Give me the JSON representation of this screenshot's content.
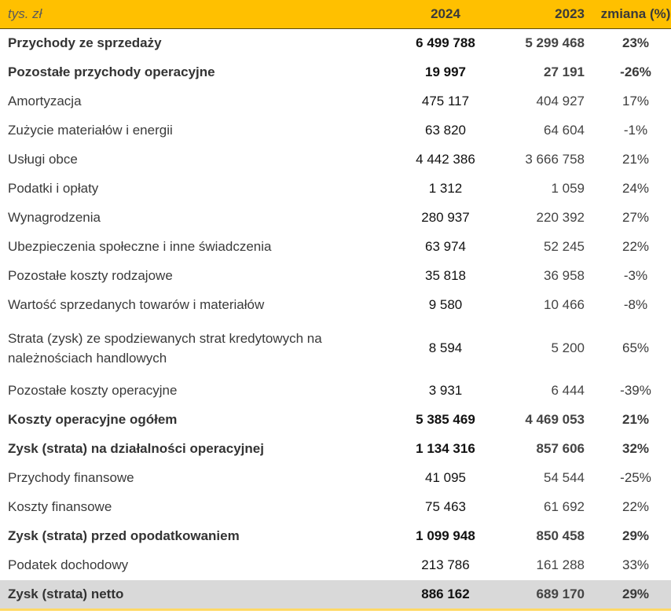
{
  "header": {
    "unit": "tys. zł",
    "col_2024": "2024",
    "col_2023": "2023",
    "col_change": "zmiana (%)"
  },
  "colors": {
    "header_bg": "#FFC000",
    "total_row_bg": "#D9D9D9"
  },
  "rows": [
    {
      "label": "Przychody ze sprzedaży",
      "v2024": "6 499 788",
      "v2023": "5 299 468",
      "change": "23%",
      "bold": true
    },
    {
      "label": "Pozostałe przychody operacyjne",
      "v2024": "19 997",
      "v2023": "27 191",
      "change": "-26%",
      "bold": true
    },
    {
      "label": "Amortyzacja",
      "v2024": "475 117",
      "v2023": "404 927",
      "change": "17%"
    },
    {
      "label": "Zużycie materiałów i energii",
      "v2024": "63 820",
      "v2023": "64 604",
      "change": "-1%"
    },
    {
      "label": "Usługi obce",
      "v2024": "4 442 386",
      "v2023": "3 666 758",
      "change": "21%"
    },
    {
      "label": "Podatki i opłaty",
      "v2024": "1 312",
      "v2023": "1 059",
      "change": "24%"
    },
    {
      "label": "Wynagrodzenia",
      "v2024": "280 937",
      "v2023": "220 392",
      "change": "27%"
    },
    {
      "label": "Ubezpieczenia społeczne i inne świadczenia",
      "v2024": "63 974",
      "v2023": "52 245",
      "change": "22%"
    },
    {
      "label": "Pozostałe koszty rodzajowe",
      "v2024": "35 818",
      "v2023": "36 958",
      "change": "-3%"
    },
    {
      "label": "Wartość sprzedanych towarów i materiałów",
      "v2024": "9 580",
      "v2023": "10 466",
      "change": "-8%"
    },
    {
      "label": "Strata (zysk) ze spodziewanych strat kredytowych na należnościach handlowych",
      "v2024": "8 594",
      "v2023": "5 200",
      "change": "65%",
      "tall": true
    },
    {
      "label": "Pozostałe koszty operacyjne",
      "v2024": "3 931",
      "v2023": "6 444",
      "change": "-39%"
    },
    {
      "label": "Koszty operacyjne ogółem",
      "v2024": "5 385 469",
      "v2023": "4 469 053",
      "change": "21%",
      "bold": true
    },
    {
      "label": "Zysk (strata) na działalności operacyjnej",
      "v2024": "1 134 316",
      "v2023": "857 606",
      "change": "32%",
      "bold": true
    },
    {
      "label": "Przychody finansowe",
      "v2024": "41 095",
      "v2023": "54 544",
      "change": "-25%"
    },
    {
      "label": "Koszty finansowe",
      "v2024": "75 463",
      "v2023": "61 692",
      "change": "22%"
    },
    {
      "label": "Zysk (strata) przed opodatkowaniem",
      "v2024": "1 099 948",
      "v2023": "850 458",
      "change": "29%",
      "bold": true
    },
    {
      "label": "Podatek dochodowy",
      "v2024": "213 786",
      "v2023": "161 288",
      "change": "33%"
    },
    {
      "label": "Zysk (strata) netto",
      "v2024": "886 162",
      "v2023": "689 170",
      "change": "29%",
      "bold": true,
      "total": true
    }
  ]
}
